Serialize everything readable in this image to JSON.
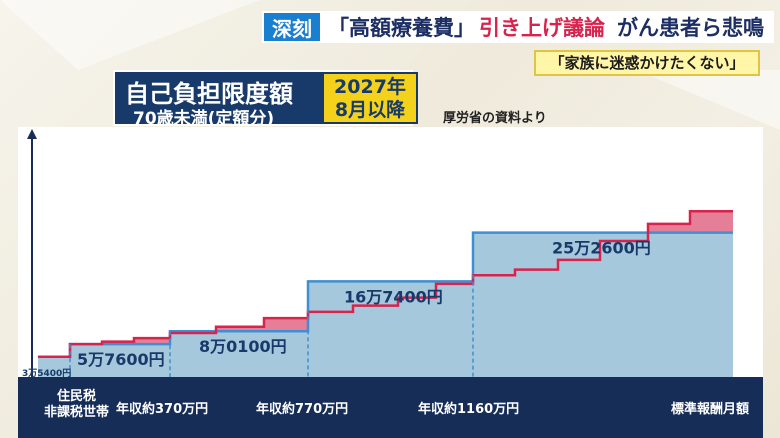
{
  "banner": {
    "tag": "深刻",
    "headline_part1": "「高額療養費」",
    "headline_part2": "引き上げ議論",
    "headline_part3": "がん患者ら悲鳴",
    "quote": "「家族に迷惑かけたくない」"
  },
  "title": {
    "main": "自己負担限度額",
    "sub": "70歳未満(定額分)",
    "date_line1": "2027年",
    "date_line2": "8月以降",
    "source": "厚労省の資料より"
  },
  "colors": {
    "navy": "#162d57",
    "blue_fill": "#a6c8dc",
    "blue_line": "#3f8fd2",
    "pink_fill": "#e47f97",
    "red_line": "#d8234d",
    "value_text": "#173a6a"
  },
  "chart_data": {
    "type": "area",
    "title": "自己負担限度額",
    "subtitle": "70歳未満(定額分)",
    "xlabel": "標準報酬月額",
    "ylabel": "",
    "x_tick_labels": [
      {
        "label_line1": "住民税",
        "label_line2": "非課税世帯"
      },
      {
        "label": "年収約370万円"
      },
      {
        "label": "年収約770万円"
      },
      {
        "label": "年収約1160万円"
      },
      {
        "label": "標準報酬月額"
      }
    ],
    "series": [
      {
        "name": "",
        "style": "blue-current",
        "brackets": [
          {
            "label": "3万5400円",
            "value": 35400,
            "small": true
          },
          {
            "label": "5万7600円",
            "value": 57600
          },
          {
            "label": "8万0100円",
            "value": 80100
          },
          {
            "label": "16万7400円",
            "value": 167400
          },
          {
            "label": "25万2600円",
            "value": 252600
          }
        ]
      },
      {
        "name": "",
        "style": "red-after",
        "brackets_values": [
          35400,
          57600,
          62000,
          68000,
          77000,
          88000,
          103000,
          114000,
          125000,
          139000,
          163000,
          178000,
          188000,
          205000,
          238000,
          268000,
          290000,
          316000
        ]
      }
    ],
    "ylim": [
      0,
      350000
    ],
    "grid": false,
    "legend": "none"
  }
}
